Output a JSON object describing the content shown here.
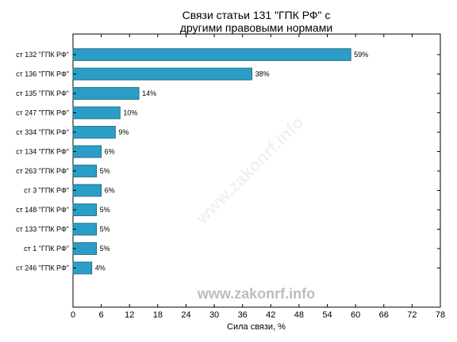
{
  "chart_data": {
    "type": "bar",
    "orientation": "horizontal",
    "title": [
      "Связи статьи 131 \"ГПК РФ\" с",
      "другими правовыми нормами"
    ],
    "xlabel": "Сила связи, %",
    "xlim": [
      0,
      78
    ],
    "xticks": [
      0,
      6,
      12,
      18,
      24,
      30,
      36,
      42,
      48,
      54,
      60,
      66,
      72,
      78
    ],
    "categories": [
      "ст 132 \"ГПК РФ\"",
      "ст 136 \"ГПК РФ\"",
      "ст 135 \"ГПК РФ\"",
      "ст 247 \"ГПК РФ\"",
      "ст 334 \"ГПК РФ\"",
      "ст 134 \"ГПК РФ\"",
      "ст 263 \"ГПК РФ\"",
      "ст 3 \"ГПК РФ\"",
      "ст 148 \"ГПК РФ\"",
      "ст 133 \"ГПК РФ\"",
      "ст 1 \"ГПК РФ\"",
      "ст 246 \"ГПК РФ\""
    ],
    "values": [
      59,
      38,
      14,
      10,
      9,
      6,
      5,
      6,
      5,
      5,
      5,
      4
    ],
    "value_labels": [
      "59%",
      "38%",
      "14%",
      "10%",
      "9%",
      "6%",
      "5%",
      "6%",
      "5%",
      "5%",
      "5%",
      "4%"
    ],
    "bar_color": "#2a9ec6",
    "bar_edge_color": "#1a5f78",
    "grid": false,
    "legend": "none"
  },
  "watermark": {
    "text": "www.zakonrf.info",
    "color": "#bdbdbd"
  }
}
